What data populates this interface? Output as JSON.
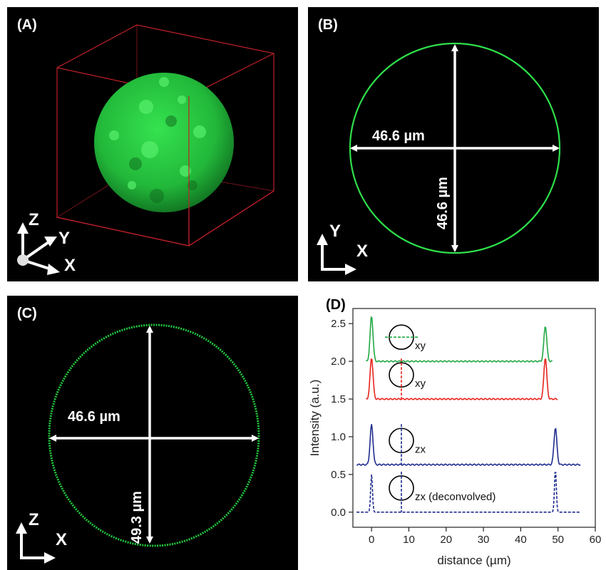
{
  "panels": {
    "a": {
      "label": "(A)",
      "axes": {
        "z": "Z",
        "y": "Y",
        "x": "X"
      }
    },
    "b": {
      "label": "(B)",
      "horizontal": "46.6 µm",
      "vertical": "46.6 µm",
      "axes": {
        "y": "Y",
        "x": "X"
      }
    },
    "c": {
      "label": "(C)",
      "horizontal": "46.6 µm",
      "vertical": "49.3 µm",
      "axes": {
        "z": "Z",
        "x": "X"
      }
    },
    "d": {
      "label": "(D)"
    }
  },
  "colors": {
    "green": "#22a845",
    "red": "#e8231c",
    "blue": "#1f2c8f",
    "fluor": "#2ee04a"
  },
  "chart_data": {
    "type": "line",
    "xlabel": "distance (µm)",
    "ylabel": "Intensity (a.u.)",
    "xlim": [
      -5,
      60
    ],
    "ylim": [
      -0.2,
      2.7
    ],
    "xticks": [
      0,
      10,
      20,
      30,
      40,
      50,
      60
    ],
    "yticks": [
      0.0,
      0.5,
      1.0,
      1.5,
      2.0,
      2.5
    ],
    "series": [
      {
        "name": "xy",
        "color": "#22a845",
        "style": "solid",
        "baseline": 2.0,
        "x_start": -1.5,
        "x_end": 48.5,
        "peaks": [
          {
            "x": 0.0,
            "y": 2.6
          },
          {
            "x": 46.6,
            "y": 2.47
          }
        ],
        "scan": "horizontal"
      },
      {
        "name": "xy",
        "color": "#e8231c",
        "style": "solid",
        "baseline": 1.5,
        "x_start": -1.5,
        "x_end": 50.0,
        "peaks": [
          {
            "x": 0.0,
            "y": 2.05
          },
          {
            "x": 46.6,
            "y": 2.05
          }
        ],
        "scan": "vertical"
      },
      {
        "name": "zx",
        "color": "#1f2c8f",
        "style": "solid",
        "baseline": 0.63,
        "x_start": -4.0,
        "x_end": 56.0,
        "peaks": [
          {
            "x": 0.0,
            "y": 1.16
          },
          {
            "x": 49.3,
            "y": 1.12
          }
        ],
        "scan": "vertical"
      },
      {
        "name": "zx (deconvolved)",
        "color": "#1f2c8f",
        "style": "dashed",
        "baseline": 0.0,
        "x_start": -4.0,
        "x_end": 56.0,
        "peaks": [
          {
            "x": 0.0,
            "y": 0.5
          },
          {
            "x": 49.3,
            "y": 0.57
          }
        ],
        "scan": "vertical"
      }
    ]
  }
}
